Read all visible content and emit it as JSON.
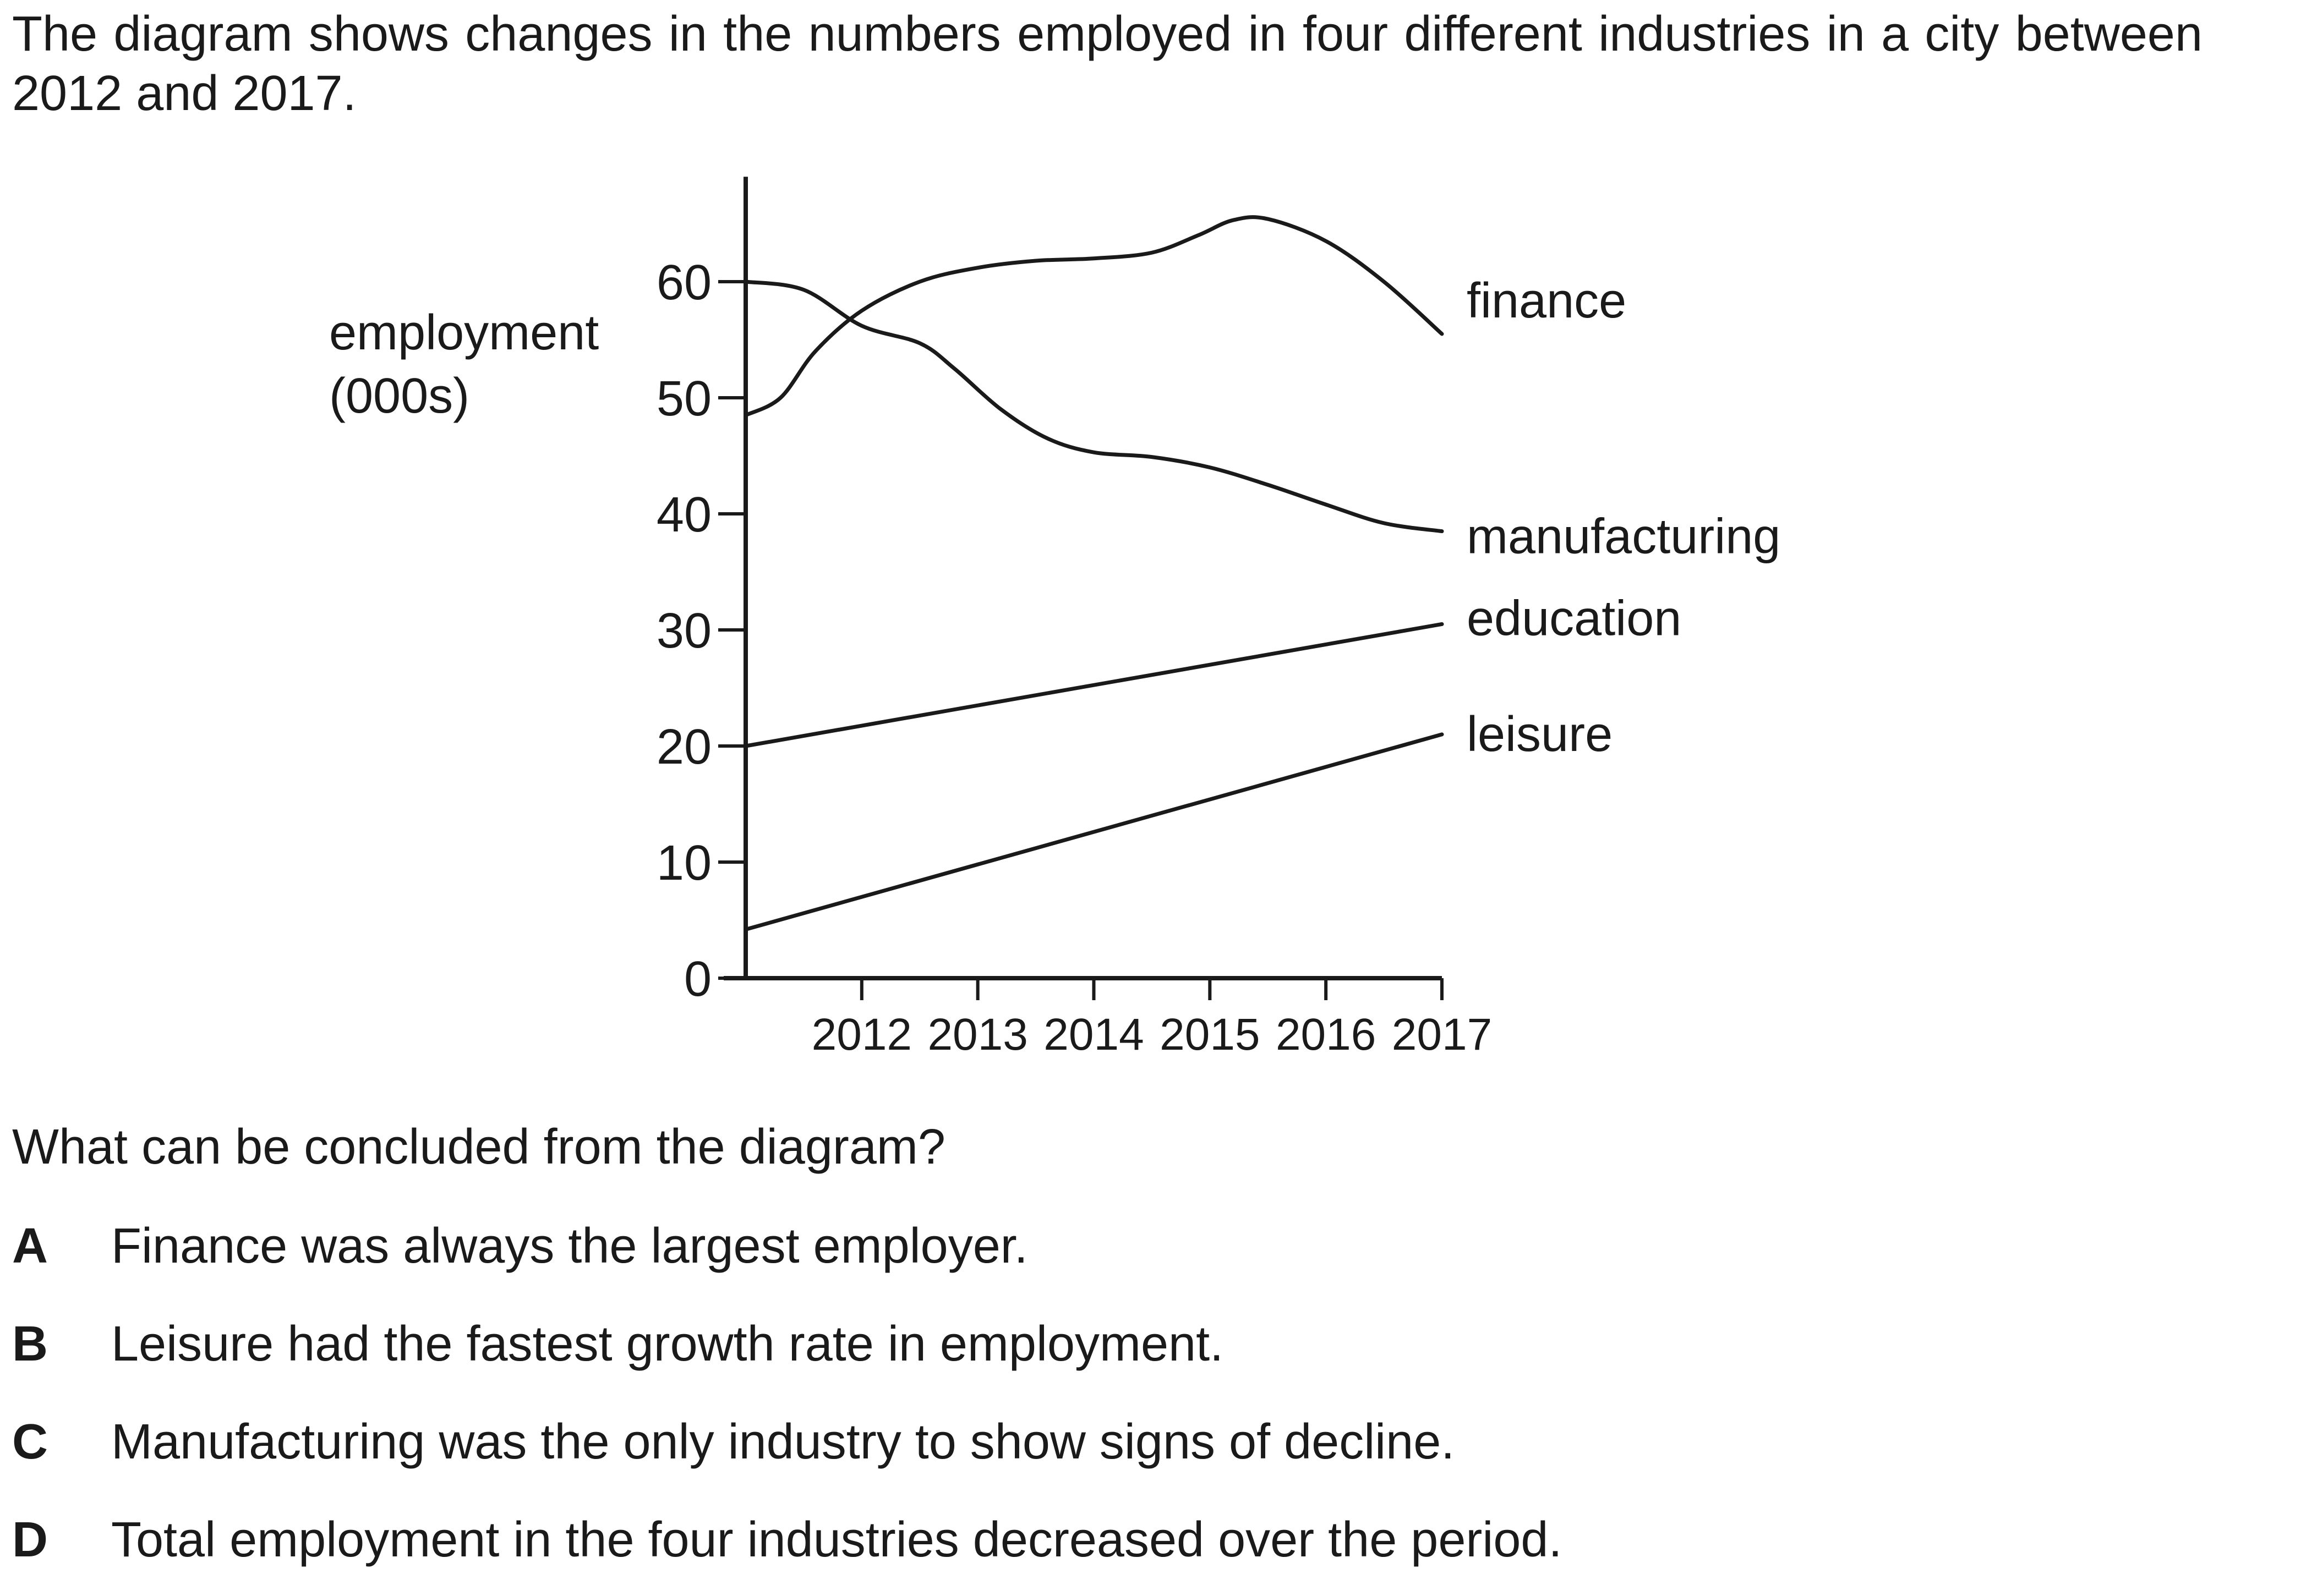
{
  "intro": "The diagram shows changes in the numbers employed in four different industries in a city between 2012 and 2017.",
  "question": "What can be concluded from the diagram?",
  "options": [
    {
      "letter": "A",
      "text": "Finance was always the largest employer."
    },
    {
      "letter": "B",
      "text": "Leisure had the fastest growth rate in employment."
    },
    {
      "letter": "C",
      "text": "Manufacturing was the only industry to show signs of decline."
    },
    {
      "letter": "D",
      "text": "Total employment in the four industries decreased over the period."
    }
  ],
  "chart_data": {
    "type": "line",
    "title": "",
    "ylabel_lines": [
      "employment",
      "(000s)"
    ],
    "xlabel": "",
    "x_ticks": [
      2012,
      2013,
      2014,
      2015,
      2016,
      2017
    ],
    "y_ticks": [
      0,
      10,
      20,
      30,
      40,
      50,
      60
    ],
    "ylim": [
      0,
      68
    ],
    "xlim": [
      2011,
      2017
    ],
    "grid": false,
    "legend": "labels at line ends",
    "series": [
      {
        "name": "finance",
        "points": [
          [
            2011,
            48.5
          ],
          [
            2011.3,
            50
          ],
          [
            2011.6,
            54
          ],
          [
            2012,
            57.5
          ],
          [
            2012.5,
            60
          ],
          [
            2013,
            61.2
          ],
          [
            2013.5,
            61.8
          ],
          [
            2014,
            62
          ],
          [
            2014.5,
            62.5
          ],
          [
            2014.9,
            64
          ],
          [
            2015.2,
            65.3
          ],
          [
            2015.5,
            65.4
          ],
          [
            2016,
            63.5
          ],
          [
            2016.5,
            60
          ],
          [
            2017,
            55.5
          ]
        ]
      },
      {
        "name": "manufacturing",
        "points": [
          [
            2011,
            60
          ],
          [
            2011.5,
            59.3
          ],
          [
            2012,
            56.2
          ],
          [
            2012.5,
            54.7
          ],
          [
            2012.8,
            52.5
          ],
          [
            2013.2,
            49
          ],
          [
            2013.6,
            46.5
          ],
          [
            2014,
            45.3
          ],
          [
            2014.5,
            44.9
          ],
          [
            2015,
            44
          ],
          [
            2015.5,
            42.5
          ],
          [
            2016,
            40.8
          ],
          [
            2016.5,
            39.2
          ],
          [
            2017,
            38.5
          ]
        ]
      },
      {
        "name": "education",
        "points": [
          [
            2011,
            20
          ],
          [
            2017,
            30.5
          ]
        ]
      },
      {
        "name": "leisure",
        "points": [
          [
            2011,
            4.2
          ],
          [
            2017,
            21
          ]
        ]
      }
    ]
  }
}
